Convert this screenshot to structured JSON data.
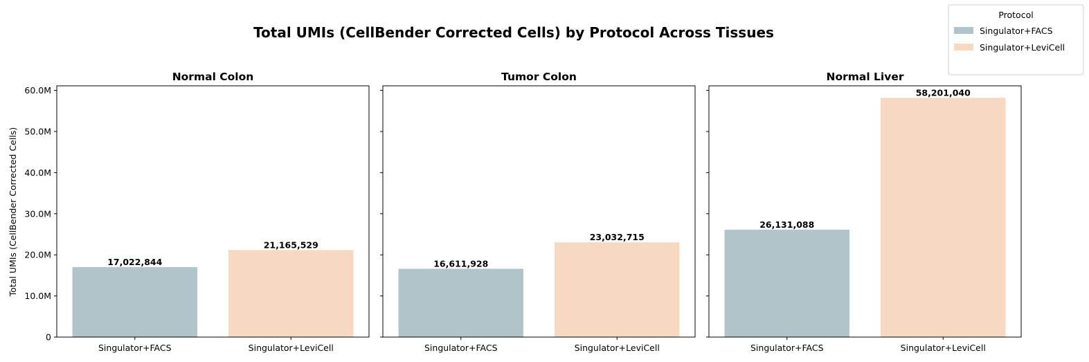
{
  "figure": {
    "title": "Total UMIs (CellBender Corrected Cells) by Protocol Across Tissues",
    "ylabel": "Total UMIs (CellBender Corrected Cells)",
    "y_tick_labels": [
      "0",
      "10.0M",
      "20.0M",
      "30.0M",
      "40.0M",
      "50.0M",
      "60.0M"
    ]
  },
  "legend": {
    "title": "Protocol",
    "placement": "top-right",
    "items": [
      {
        "label": "Singulator+FACS",
        "color": "#b0c4ca"
      },
      {
        "label": "Singulator+LeviCell",
        "color": "#f6d9c0"
      }
    ]
  },
  "chart_data": [
    {
      "type": "bar",
      "title": "Normal Colon",
      "categories": [
        "Singulator+FACS",
        "Singulator+LeviCell"
      ],
      "values": [
        17022844,
        21165529
      ],
      "value_labels": [
        "17,022,844",
        "21,165,529"
      ],
      "ylabel": "Total UMIs (CellBender Corrected Cells)",
      "ylim": [
        0,
        61110092
      ],
      "grid": false
    },
    {
      "type": "bar",
      "title": "Tumor Colon",
      "categories": [
        "Singulator+FACS",
        "Singulator+LeviCell"
      ],
      "values": [
        16611928,
        23032715
      ],
      "value_labels": [
        "16,611,928",
        "23,032,715"
      ],
      "ylim": [
        0,
        61110092
      ],
      "grid": false
    },
    {
      "type": "bar",
      "title": "Normal Liver",
      "categories": [
        "Singulator+FACS",
        "Singulator+LeviCell"
      ],
      "values": [
        26131088,
        58201040
      ],
      "value_labels": [
        "26,131,088",
        "58,201,040"
      ],
      "ylim": [
        0,
        61110092
      ],
      "grid": false
    }
  ]
}
